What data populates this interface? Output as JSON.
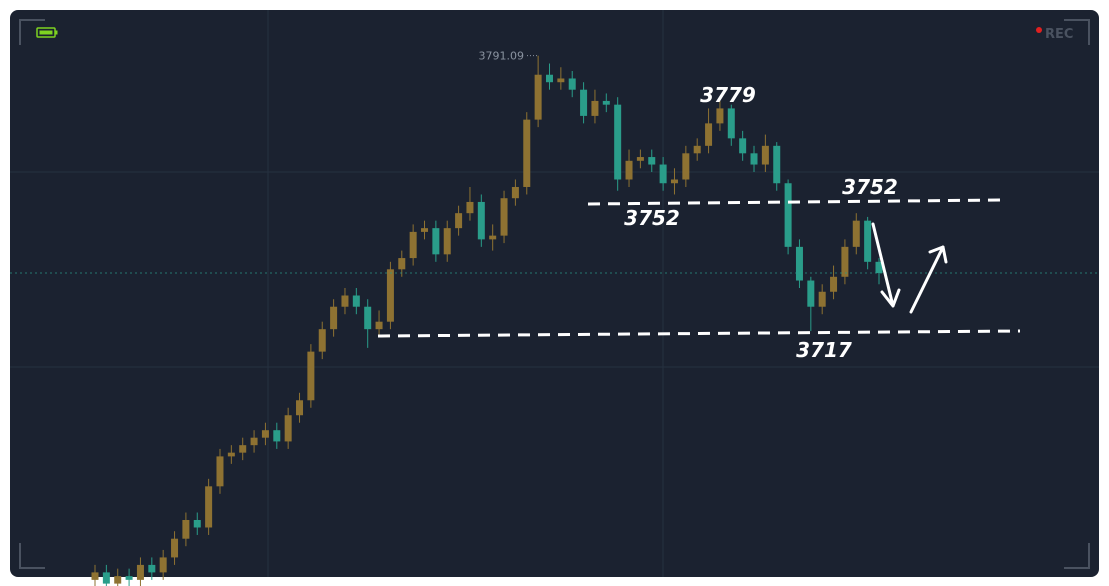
{
  "chart_data": {
    "type": "candlestick",
    "rec_label": "REC",
    "high_label": "3791.09",
    "annotations": [
      "3779",
      "3752",
      "3752",
      "3717"
    ],
    "up_color": "#8e7232",
    "down_color": "#2a9d8a",
    "ylim": [
      3651.5,
      3803.3
    ],
    "open": [
      3651,
      3653,
      3650,
      3652,
      3651,
      3655,
      3653,
      3657,
      3662,
      3667,
      3665,
      3676,
      3684,
      3685,
      3687,
      3689,
      3691,
      3688,
      3695,
      3699,
      3712,
      3718,
      3724,
      3727,
      3724,
      3718,
      3720,
      3734,
      3737,
      3744,
      3745,
      3738,
      3745,
      3749,
      3752,
      3742,
      3743,
      3753,
      3756,
      3774,
      3786,
      3784,
      3785,
      3782,
      3775,
      3779,
      3778,
      3758,
      3763,
      3764,
      3762,
      3757,
      3758,
      3765,
      3767,
      3773,
      3777,
      3769,
      3765,
      3762,
      3767,
      3757,
      3740,
      3731,
      3724,
      3728,
      3732,
      3740,
      3747,
      3736
    ],
    "high": [
      3655,
      3655,
      3654,
      3654,
      3657,
      3657,
      3659,
      3664,
      3669,
      3669,
      3678,
      3686,
      3687,
      3689,
      3691,
      3693,
      3693,
      3697,
      3701,
      3714,
      3720,
      3726,
      3729,
      3729,
      3726,
      3723,
      3736,
      3739,
      3746,
      3747,
      3747,
      3747,
      3751,
      3756,
      3754,
      3746,
      3755,
      3758,
      3776,
      3791.09,
      3789,
      3788,
      3787,
      3784,
      3782,
      3781,
      3780,
      3766,
      3766,
      3766,
      3764,
      3761,
      3767,
      3769,
      3777,
      3779,
      3778,
      3771,
      3767,
      3770,
      3768,
      3758,
      3742,
      3732,
      3730,
      3735,
      3742,
      3749,
      3748,
      3737
    ],
    "low": [
      3649,
      3648,
      3648,
      3649,
      3649,
      3651,
      3651,
      3655,
      3660,
      3663,
      3663,
      3674,
      3682,
      3683,
      3685,
      3687,
      3686,
      3686,
      3693,
      3697,
      3710,
      3716,
      3722,
      3722,
      3713,
      3716,
      3718,
      3732,
      3735,
      3742,
      3736,
      3736,
      3743,
      3747,
      3740,
      3739,
      3741,
      3751,
      3754,
      3772,
      3782,
      3782,
      3780,
      3773,
      3773,
      3776,
      3755,
      3756,
      3761,
      3760,
      3755,
      3754,
      3756,
      3763,
      3765,
      3771,
      3767,
      3763,
      3760,
      3760,
      3755,
      3738,
      3729,
      3717.5,
      3722,
      3726,
      3730,
      3738,
      3734,
      3730
    ],
    "close": [
      3653,
      3650,
      3652,
      3651,
      3655,
      3653,
      3657,
      3662,
      3667,
      3665,
      3676,
      3684,
      3685,
      3687,
      3689,
      3691,
      3688,
      3695,
      3699,
      3712,
      3718,
      3724,
      3727,
      3724,
      3718,
      3720,
      3734,
      3737,
      3744,
      3745,
      3738,
      3745,
      3749,
      3752,
      3742,
      3743,
      3753,
      3756,
      3774,
      3786,
      3784,
      3785,
      3782,
      3775,
      3779,
      3778,
      3758,
      3763,
      3764,
      3762,
      3757,
      3758,
      3765,
      3767,
      3773,
      3777,
      3769,
      3765,
      3762,
      3767,
      3757,
      3740,
      3731,
      3724,
      3728,
      3732,
      3740,
      3747,
      3736,
      3733
    ]
  }
}
